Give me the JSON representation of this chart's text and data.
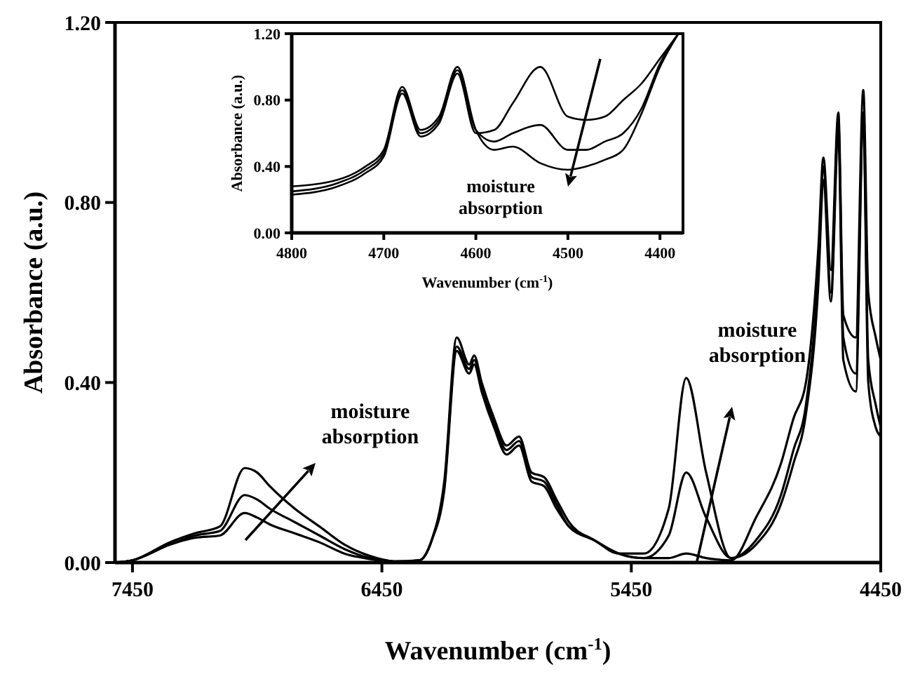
{
  "chart_data": [
    {
      "type": "line",
      "xlabel": "Wavenumber (cm$^{-1}$)",
      "ylabel": "Absorbance (a.u.)",
      "xlim": [
        7520,
        4450
      ],
      "ylim": [
        0,
        1.2
      ],
      "xticks": [
        7450,
        6450,
        5450,
        4450
      ],
      "yticks": [
        {
          "value": 0,
          "label": "0.00"
        },
        {
          "value": 0.4,
          "label": "0.40"
        },
        {
          "value": 0.8,
          "label": "0.80"
        },
        {
          "value": 1.2,
          "label": "1.20"
        }
      ],
      "grid": false,
      "marker": "none",
      "line_style": "solid",
      "x": [
        7520,
        7450,
        7300,
        7200,
        7100,
        7000,
        6950,
        6900,
        6800,
        6700,
        6600,
        6500,
        6400,
        6300,
        6250,
        6200,
        6150,
        6100,
        6080,
        6050,
        6000,
        5950,
        5900,
        5850,
        5800,
        5750,
        5700,
        5600,
        5500,
        5400,
        5300,
        5230,
        5150,
        5050,
        4950,
        4850,
        4800,
        4750,
        4700,
        4680,
        4650,
        4620,
        4600,
        4550,
        4520,
        4500,
        4470,
        4450
      ],
      "series": [
        {
          "color": "#000000",
          "values": [
            0,
            0.005,
            0.04,
            0.055,
            0.06,
            0.11,
            0.1,
            0.085,
            0.065,
            0.045,
            0.02,
            0.008,
            0.002,
            0.005,
            0.05,
            0.18,
            0.5,
            0.44,
            0.46,
            0.4,
            0.32,
            0.26,
            0.28,
            0.2,
            0.19,
            0.14,
            0.09,
            0.05,
            0.02,
            0.01,
            0.01,
            0.02,
            0.01,
            0.005,
            0.1,
            0.22,
            0.32,
            0.4,
            0.7,
            0.9,
            0.65,
            1.0,
            0.55,
            0.5,
            1.05,
            0.6,
            0.5,
            0.45
          ]
        },
        {
          "color": "#000000",
          "values": [
            0,
            0.005,
            0.04,
            0.06,
            0.07,
            0.15,
            0.14,
            0.12,
            0.09,
            0.06,
            0.03,
            0.01,
            0.002,
            0.005,
            0.05,
            0.17,
            0.48,
            0.43,
            0.45,
            0.39,
            0.31,
            0.25,
            0.27,
            0.19,
            0.18,
            0.13,
            0.08,
            0.05,
            0.02,
            0.01,
            0.06,
            0.2,
            0.1,
            0.01,
            0.05,
            0.15,
            0.25,
            0.35,
            0.65,
            0.88,
            0.6,
            0.98,
            0.5,
            0.42,
            1.0,
            0.45,
            0.35,
            0.3
          ]
        },
        {
          "color": "#000000",
          "values": [
            0,
            0.005,
            0.045,
            0.065,
            0.08,
            0.21,
            0.2,
            0.17,
            0.12,
            0.08,
            0.04,
            0.015,
            0.003,
            0.005,
            0.05,
            0.16,
            0.47,
            0.42,
            0.44,
            0.38,
            0.3,
            0.24,
            0.26,
            0.18,
            0.17,
            0.12,
            0.08,
            0.05,
            0.02,
            0.02,
            0.12,
            0.41,
            0.2,
            0.01,
            0.04,
            0.13,
            0.22,
            0.33,
            0.62,
            0.85,
            0.58,
            0.95,
            0.45,
            0.38,
            0.98,
            0.4,
            0.3,
            0.28
          ]
        }
      ],
      "annotations": [
        "moisture absorption",
        "moisture absorption"
      ]
    },
    {
      "type": "line",
      "xlabel": "Wavenumber (cm$^{-1}$)",
      "ylabel": "Absorbance (a.u.)",
      "xlim": [
        4800,
        4375
      ],
      "ylim": [
        0,
        1.2
      ],
      "xticks": [
        4800,
        4700,
        4600,
        4500,
        4400
      ],
      "yticks": [
        {
          "value": 0,
          "label": "0.00"
        },
        {
          "value": 0.4,
          "label": "0.40"
        },
        {
          "value": 0.8,
          "label": "0.80"
        },
        {
          "value": 1.2,
          "label": "1.20"
        }
      ],
      "grid": false,
      "marker": "none",
      "line_style": "solid",
      "x": [
        4800,
        4750,
        4720,
        4700,
        4680,
        4660,
        4640,
        4620,
        4600,
        4580,
        4560,
        4530,
        4500,
        4480,
        4460,
        4440,
        4420,
        4400,
        4380
      ],
      "series": [
        {
          "color": "#000000",
          "values": [
            0.28,
            0.32,
            0.4,
            0.5,
            0.88,
            0.62,
            0.7,
            1.0,
            0.62,
            0.5,
            0.52,
            0.42,
            0.38,
            0.4,
            0.44,
            0.5,
            0.72,
            1.0,
            1.2
          ]
        },
        {
          "color": "#000000",
          "values": [
            0.25,
            0.3,
            0.38,
            0.48,
            0.86,
            0.6,
            0.68,
            0.98,
            0.62,
            0.55,
            0.6,
            0.65,
            0.5,
            0.5,
            0.55,
            0.6,
            0.75,
            1.02,
            1.2
          ]
        },
        {
          "color": "#000000",
          "values": [
            0.23,
            0.28,
            0.36,
            0.46,
            0.84,
            0.58,
            0.66,
            0.96,
            0.6,
            0.62,
            0.78,
            1.0,
            0.7,
            0.68,
            0.7,
            0.8,
            0.9,
            1.05,
            1.2
          ]
        }
      ],
      "annotations": [
        "moisture absorption"
      ]
    }
  ]
}
